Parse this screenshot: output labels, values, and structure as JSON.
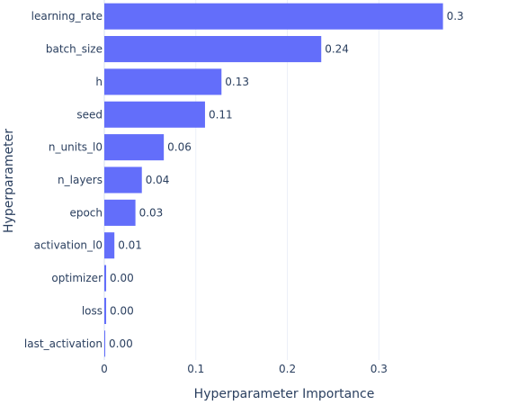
{
  "chart_data": {
    "type": "bar",
    "orientation": "horizontal",
    "categories": [
      "learning_rate",
      "batch_size",
      "h",
      "seed",
      "n_units_l0",
      "n_layers",
      "epoch",
      "activation_l0",
      "optimizer",
      "loss",
      "last_activation"
    ],
    "values": [
      0.37,
      0.237,
      0.128,
      0.11,
      0.065,
      0.041,
      0.034,
      0.011,
      0.002,
      0.002,
      0.001
    ],
    "value_labels": [
      "0.37",
      "0.24",
      "0.13",
      "0.11",
      "0.06",
      "0.04",
      "0.03",
      "0.01",
      "0.00",
      "0.00",
      "0.00"
    ],
    "xlabel": "Hyperparameter Importance",
    "ylabel": "Hyperparameter",
    "xlim": [
      0,
      0.393
    ],
    "xticks": [
      0,
      0.1,
      0.2,
      0.3
    ],
    "xtick_labels": [
      "0",
      "0.1",
      "0.2",
      "0.3"
    ],
    "grid": true,
    "bar_color": "#636efa"
  }
}
